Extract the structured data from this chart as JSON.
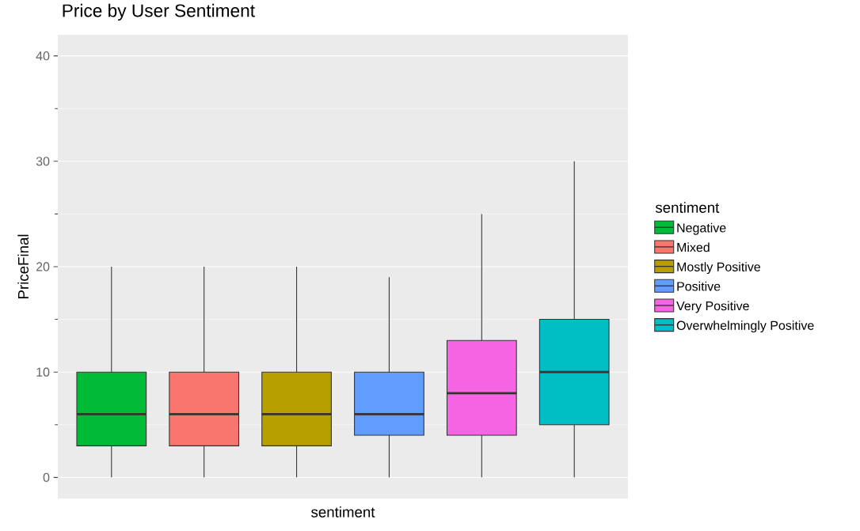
{
  "chart_data": {
    "type": "box",
    "title": "Price by User Sentiment",
    "xlabel": "sentiment",
    "ylabel": "PriceFinal",
    "legend_title": "sentiment",
    "categories": [
      null
    ],
    "series": [
      {
        "name": "Negative",
        "color": "#00ba38",
        "boxes": [
          {
            "low": 0,
            "q1": 3,
            "median": 6,
            "q3": 10,
            "high": 20
          }
        ]
      },
      {
        "name": "Mixed",
        "color": "#f8766d",
        "boxes": [
          {
            "low": 0,
            "q1": 3,
            "median": 6,
            "q3": 10,
            "high": 20
          }
        ]
      },
      {
        "name": "Mostly Positive",
        "color": "#b79f00",
        "boxes": [
          {
            "low": 0,
            "q1": 3,
            "median": 6,
            "q3": 10,
            "high": 20
          }
        ]
      },
      {
        "name": "Positive",
        "color": "#619cff",
        "boxes": [
          {
            "low": 0,
            "q1": 4,
            "median": 6,
            "q3": 10,
            "high": 19
          }
        ]
      },
      {
        "name": "Very Positive",
        "color": "#f564e3",
        "boxes": [
          {
            "low": 0,
            "q1": 4,
            "median": 8,
            "q3": 13,
            "high": 25
          }
        ]
      },
      {
        "name": "Overwhelmingly Positive",
        "color": "#00bfc4",
        "boxes": [
          {
            "low": 0,
            "q1": 5,
            "median": 10,
            "q3": 15,
            "high": 30
          }
        ]
      }
    ],
    "ylim": [
      -2,
      42
    ],
    "yticks": [
      0,
      10,
      20,
      30,
      40
    ],
    "grid": "y",
    "legend": "right"
  }
}
